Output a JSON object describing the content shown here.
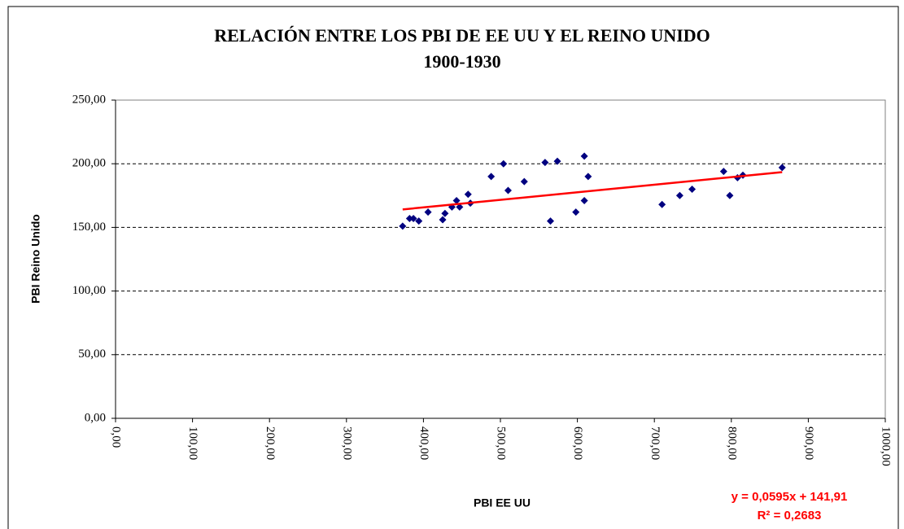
{
  "chart_data": {
    "type": "scatter",
    "title": "RELACIÓN ENTRE LOS PBI DE EE UU Y EL REINO UNIDO",
    "subtitle": "1900-1930",
    "x_label": "PBI EE UU",
    "y_label": "PBI Reino Unido",
    "color": "#000080",
    "x": [
      373,
      394,
      382,
      387,
      425,
      406,
      428,
      437,
      443,
      447,
      458,
      488,
      461,
      504,
      510,
      531,
      558,
      574,
      565,
      609,
      609,
      614,
      598,
      710,
      733,
      749,
      790,
      798,
      808,
      815,
      866
    ],
    "values": [
      151,
      155,
      157,
      157,
      156,
      162,
      161,
      166,
      171,
      166,
      176,
      190,
      169,
      200,
      179,
      186,
      201,
      202,
      155,
      206,
      171,
      190,
      162,
      168,
      175,
      180,
      194,
      175,
      189,
      191,
      197
    ],
    "trendline": {
      "color": "#ff0000",
      "x": [
        373,
        866
      ],
      "values": [
        164.1,
        193.4
      ],
      "equation": "y = 0,0595x + 141,91",
      "r_squared": "R² = 0,2683"
    },
    "xlim": [
      0,
      1000
    ],
    "xticks": [
      {
        "value": 0,
        "label": "0,00"
      },
      {
        "value": 100,
        "label": "100,00"
      },
      {
        "value": 200,
        "label": "200,00"
      },
      {
        "value": 300,
        "label": "300,00"
      },
      {
        "value": 400,
        "label": "400,00"
      },
      {
        "value": 500,
        "label": "500,00"
      },
      {
        "value": 600,
        "label": "600,00"
      },
      {
        "value": 700,
        "label": "700,00"
      },
      {
        "value": 800,
        "label": "800,00"
      },
      {
        "value": 900,
        "label": "900,00"
      },
      {
        "value": 1000,
        "label": "1000,00"
      }
    ],
    "ylim": [
      0,
      250
    ],
    "yticks": [
      {
        "value": 0,
        "label": "0,00"
      },
      {
        "value": 50,
        "label": "50,00"
      },
      {
        "value": 100,
        "label": "100,00"
      },
      {
        "value": 150,
        "label": "150,00"
      },
      {
        "value": 200,
        "label": "200,00"
      },
      {
        "value": 250,
        "label": "250,00"
      }
    ],
    "grid": true
  }
}
